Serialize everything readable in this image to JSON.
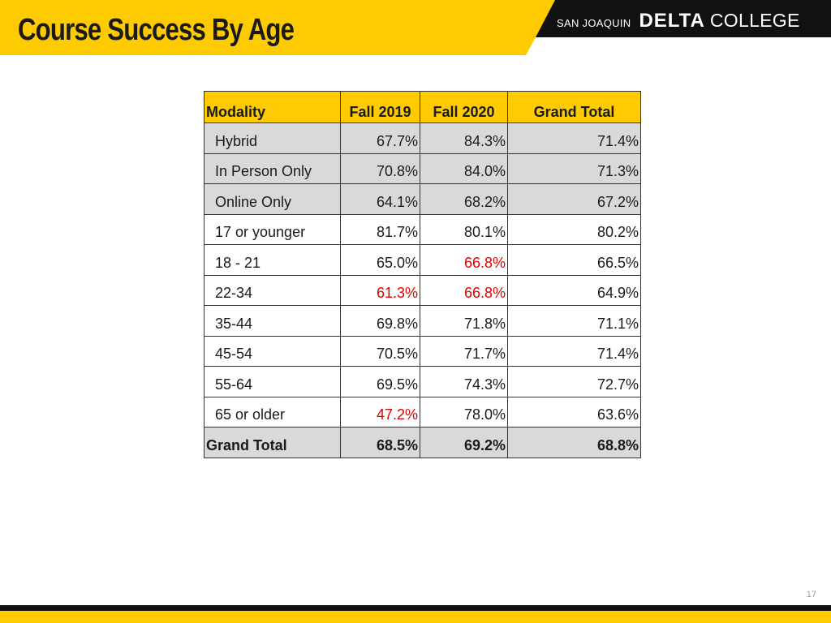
{
  "slide": {
    "title": "Course Success By Age",
    "page_number": "17"
  },
  "logo": {
    "prefix": "SAN JOAQUIN",
    "main": "DELTA",
    "suffix": "COLLEGE"
  },
  "colors": {
    "accent_gold": "#fecb00",
    "header_dark": "#111111",
    "shaded_row": "#d9d9d9",
    "flag_red": "#e00000"
  },
  "table": {
    "headers": [
      "Modality",
      "Fall 2019",
      "Fall 2020",
      "Grand Total"
    ],
    "rows": [
      {
        "label": "Hybrid",
        "fall2019": "67.7%",
        "fall2020": "84.3%",
        "total": "71.4%"
      },
      {
        "label": "In Person Only",
        "fall2019": "70.8%",
        "fall2020": "84.0%",
        "total": "71.3%"
      },
      {
        "label": "Online Only",
        "fall2019": "64.1%",
        "fall2020": "68.2%",
        "total": "67.2%"
      },
      {
        "label": "17 or younger",
        "fall2019": "81.7%",
        "fall2020": "80.1%",
        "total": "80.2%"
      },
      {
        "label": "18 - 21",
        "fall2019": "65.0%",
        "fall2020": "66.8%",
        "total": "66.5%"
      },
      {
        "label": "22-34",
        "fall2019": "61.3%",
        "fall2020": "66.8%",
        "total": "64.9%"
      },
      {
        "label": "35-44",
        "fall2019": "69.8%",
        "fall2020": "71.8%",
        "total": "71.1%"
      },
      {
        "label": "45-54",
        "fall2019": "70.5%",
        "fall2020": "71.7%",
        "total": "71.4%"
      },
      {
        "label": "55-64",
        "fall2019": "69.5%",
        "fall2020": "74.3%",
        "total": "72.7%"
      },
      {
        "label": "65 or older",
        "fall2019": "47.2%",
        "fall2020": "78.0%",
        "total": "63.6%"
      }
    ],
    "grand_total": {
      "label": "Grand Total",
      "fall2019": "68.5%",
      "fall2020": "69.2%",
      "total": "68.8%"
    }
  }
}
